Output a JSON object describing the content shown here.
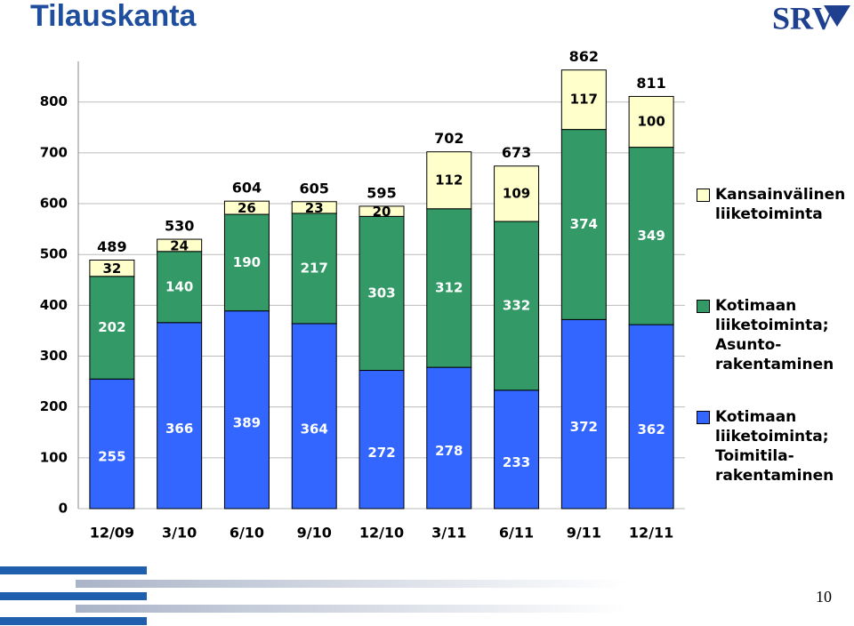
{
  "header": {
    "title": "Tilauskanta",
    "logo": "SRV"
  },
  "page_number": "10",
  "chart_data": {
    "type": "stacked_bar",
    "categories": [
      "12/09",
      "3/10",
      "6/10",
      "9/10",
      "12/10",
      "3/11",
      "6/11",
      "9/11",
      "12/11"
    ],
    "series": [
      {
        "name": "Kotimaan liiketoiminta; Toimitila-rakentaminen",
        "color": "#3366ff",
        "values": [
          255,
          366,
          389,
          364,
          272,
          278,
          233,
          372,
          362
        ]
      },
      {
        "name": "Kotimaan liiketoiminta; Asunto-rakentaminen",
        "color": "#339966",
        "values": [
          202,
          140,
          190,
          217,
          303,
          312,
          332,
          374,
          349
        ]
      },
      {
        "name": "Kansainvälinen liiketoiminta",
        "color": "#ffffcc",
        "values": [
          32,
          24,
          26,
          23,
          20,
          112,
          109,
          117,
          100
        ]
      }
    ],
    "totals": [
      489,
      530,
      604,
      605,
      595,
      702,
      673,
      862,
      811
    ],
    "ylim": [
      0,
      880
    ],
    "yticks": [
      0,
      100,
      200,
      300,
      400,
      500,
      600,
      700,
      800
    ],
    "grid": true
  }
}
